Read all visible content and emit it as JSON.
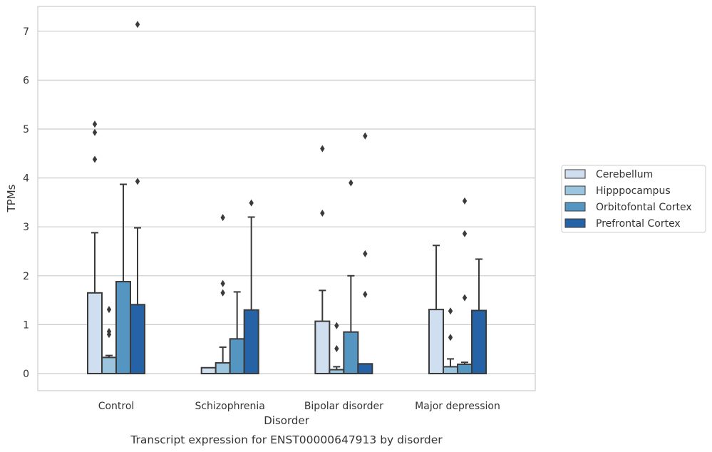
{
  "chart_data": {
    "type": "bar",
    "title": "Transcript expression for ENST00000647913 by disorder",
    "xlabel": "Disorder",
    "ylabel": "TPMs",
    "categories": [
      "Control",
      "Schizophrenia",
      "Bipolar disorder",
      "Major depression"
    ],
    "ylim": [
      -0.35,
      7.5
    ],
    "yticks": [
      0,
      1,
      2,
      3,
      4,
      5,
      6,
      7
    ],
    "ytick_labels": [
      "0",
      "1",
      "2",
      "3",
      "4",
      "5",
      "6",
      "7"
    ],
    "grid": true,
    "legend_position": "right",
    "series": [
      {
        "name": "Cerebellum",
        "color": "#d0dfef",
        "values": [
          1.65,
          0.12,
          1.07,
          1.31
        ],
        "whisker": [
          2.88,
          null,
          1.7,
          2.62
        ],
        "outliers": [
          [
            4.38,
            4.93,
            5.1
          ],
          [],
          [
            3.28,
            4.6
          ],
          []
        ]
      },
      {
        "name": "Hipppocampus",
        "color": "#9bc4de",
        "values": [
          0.33,
          0.22,
          0.08,
          0.14
        ],
        "whisker": [
          0.37,
          0.54,
          0.14,
          0.3
        ],
        "outliers": [
          [
            0.8,
            0.86,
            1.31
          ],
          [
            1.65,
            1.84,
            3.19
          ],
          [
            0.51,
            0.98
          ],
          [
            0.74,
            1.28
          ]
        ]
      },
      {
        "name": "Orbitofontal Cortex",
        "color": "#5595c2",
        "values": [
          1.88,
          0.71,
          0.85,
          0.19
        ],
        "whisker": [
          3.87,
          1.67,
          2.0,
          0.23
        ],
        "outliers": [
          [],
          [],
          [
            3.9
          ],
          [
            1.55,
            2.86,
            3.53
          ]
        ]
      },
      {
        "name": "Prefrontal Cortex",
        "color": "#2563a6",
        "values": [
          1.41,
          1.3,
          0.2,
          1.29
        ],
        "whisker": [
          2.98,
          3.2,
          null,
          2.34
        ],
        "outliers": [
          [
            3.93,
            7.14
          ],
          [
            3.49
          ],
          [
            1.62,
            2.45,
            4.86
          ],
          []
        ]
      }
    ]
  }
}
